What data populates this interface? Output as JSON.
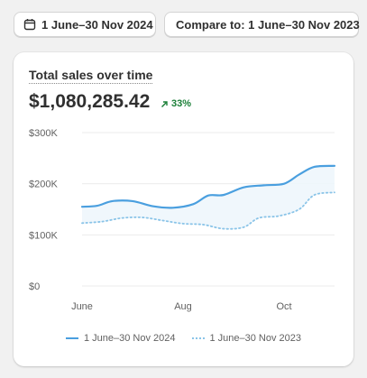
{
  "date_picker": {
    "label": "1 June–30 Nov 2024",
    "icon": "calendar-icon"
  },
  "compare_picker": {
    "label": "Compare to: 1 June–30 Nov 2023"
  },
  "card": {
    "title": "Total sales over time",
    "total": "$1,080,285.42",
    "change": "33%",
    "change_direction": "up",
    "change_color": "#1a7f37"
  },
  "colors": {
    "primary_series": "#4a9fdf",
    "comparison_series": "#8ac4e8"
  },
  "chart_data": {
    "type": "line",
    "title": "",
    "xlabel": "",
    "ylabel": "",
    "ylim": [
      0,
      300000
    ],
    "yticks": [
      {
        "value": 0,
        "label": "$0"
      },
      {
        "value": 100000,
        "label": "$100K"
      },
      {
        "value": 200000,
        "label": "$200K"
      },
      {
        "value": 300000,
        "label": "$300K"
      }
    ],
    "xticks": [
      {
        "x": 0,
        "label": "June"
      },
      {
        "x": 2,
        "label": "Aug"
      },
      {
        "x": 4,
        "label": "Oct"
      }
    ],
    "xlim": [
      0,
      5
    ],
    "grid": true,
    "legend_position": "bottom",
    "series": [
      {
        "name": "1 June–30 Nov 2024",
        "style": "solid",
        "x": [
          0,
          0.3,
          0.6,
          1,
          1.4,
          1.8,
          2.2,
          2.5,
          2.8,
          3.2,
          3.6,
          4,
          4.3,
          4.6,
          5
        ],
        "values": [
          155000,
          157000,
          166000,
          166000,
          156000,
          153000,
          160000,
          177000,
          178000,
          193000,
          197000,
          200000,
          218000,
          233000,
          235000
        ]
      },
      {
        "name": "1 June–30 Nov 2023",
        "style": "dotted",
        "x": [
          0,
          0.4,
          0.8,
          1.2,
          1.6,
          2,
          2.4,
          2.8,
          3.2,
          3.5,
          3.9,
          4.3,
          4.6,
          5
        ],
        "values": [
          123000,
          126000,
          133000,
          134000,
          128000,
          122000,
          120000,
          112000,
          115000,
          133000,
          137000,
          150000,
          178000,
          183000
        ]
      }
    ]
  }
}
